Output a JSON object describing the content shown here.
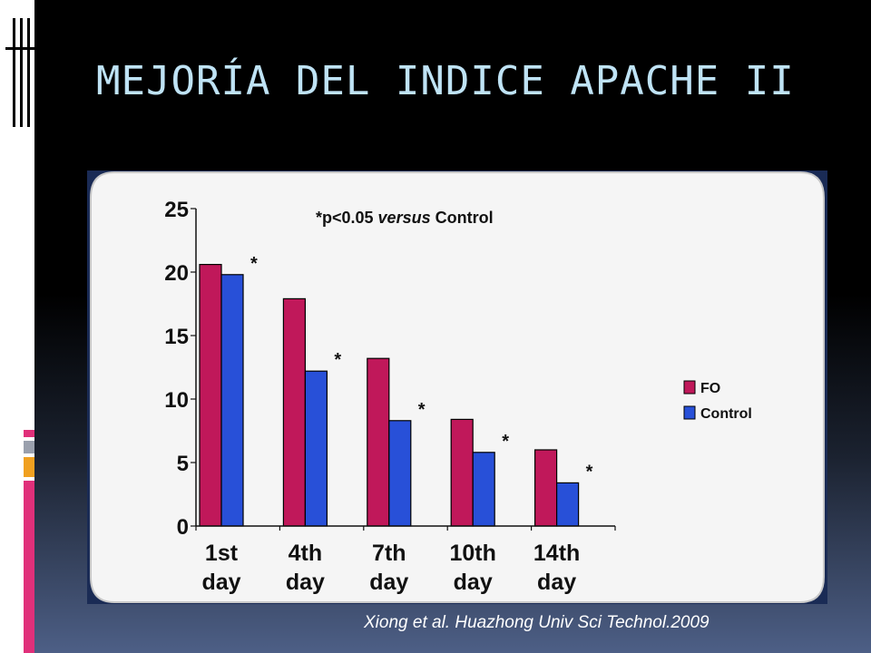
{
  "slide": {
    "title": "MEJORÍA DEL INDICE APACHE II",
    "citation": "Xiong et al. Huazhong Univ Sci Technol.2009"
  },
  "colors": {
    "background": "#000000",
    "title": "#bfe3f5",
    "fo": "#c0185a",
    "control": "#2850d8",
    "panel": "#f5f5f5",
    "accent_pink": "#e0307a",
    "accent_orange": "#f0a020"
  },
  "chart_data": {
    "type": "bar",
    "categories": [
      "1st day",
      "4th day",
      "7th day",
      "10th day",
      "14th day"
    ],
    "category_lines": [
      [
        "1st",
        "day"
      ],
      [
        "4th",
        "day"
      ],
      [
        "7th",
        "day"
      ],
      [
        "10th",
        "day"
      ],
      [
        "14th",
        "day"
      ]
    ],
    "series": [
      {
        "name": "FO",
        "color": "#c0185a",
        "values": [
          20.6,
          17.9,
          13.2,
          8.4,
          6.0
        ]
      },
      {
        "name": "Control",
        "color": "#2850d8",
        "values": [
          19.8,
          12.2,
          8.3,
          5.8,
          3.4
        ]
      }
    ],
    "ylim": [
      0,
      25
    ],
    "yticks": [
      0,
      5,
      10,
      15,
      20,
      25
    ],
    "ytick_labels": [
      "0",
      "5",
      "10",
      "15",
      "20",
      "25"
    ],
    "annotation": {
      "prefix": "*p<0.05 ",
      "italic": "versus",
      "suffix": " Control"
    },
    "significance_marker": "*",
    "significance_markers": [
      "*",
      "*",
      "*",
      "*",
      "*"
    ],
    "legend_position": "right",
    "grid": false,
    "xlabel": "",
    "ylabel": ""
  }
}
